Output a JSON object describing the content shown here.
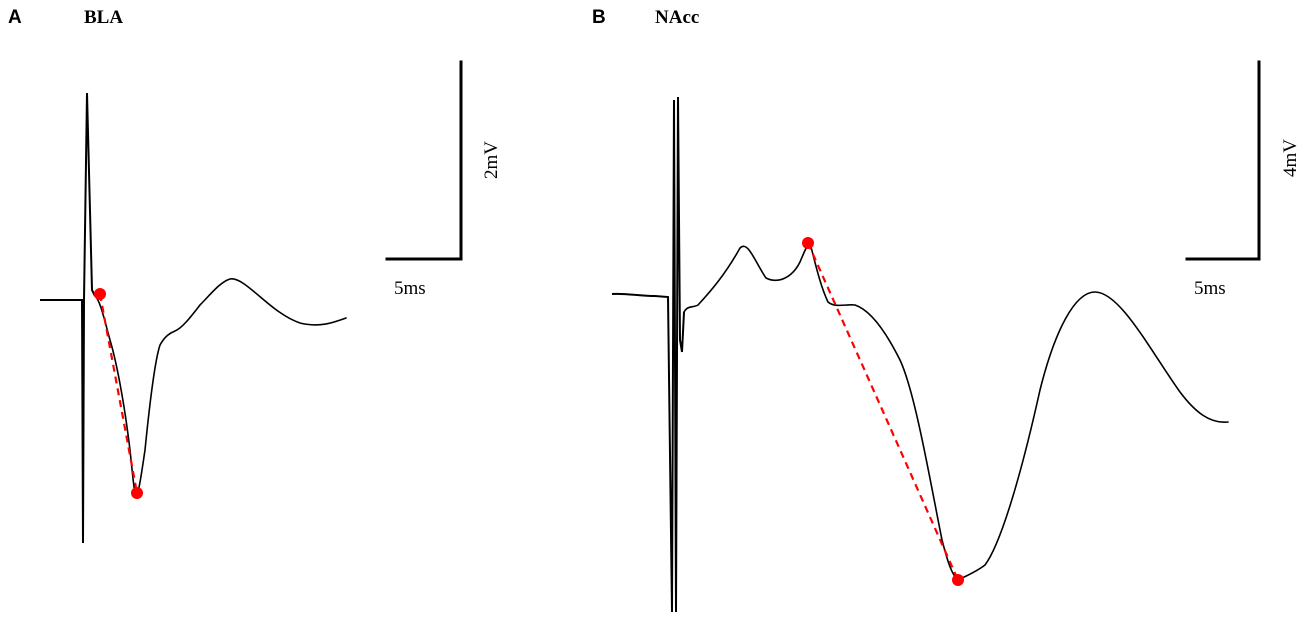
{
  "colors": {
    "trace": "#000000",
    "slope_marker": "#ff0000",
    "background": "#ffffff"
  },
  "chart_data": [
    {
      "type": "line",
      "panel": "A",
      "title": "BLA",
      "scale_bar": {
        "time": "5ms",
        "voltage": "2mV"
      },
      "waveform": {
        "baseline_mv": 0.0,
        "stimulus_artifact": {
          "up_mv": 3.2,
          "down_mv": -3.9
        },
        "fepsp_trough_mv": -3.0,
        "late_peak_mv": 0.3,
        "end_mv": -0.2
      },
      "slope_markers": [
        {
          "label": "onset",
          "time_ms": 1.9,
          "value_mv": 0.0
        },
        {
          "label": "trough",
          "time_ms": 5.7,
          "value_mv": -3.0
        }
      ]
    },
    {
      "type": "line",
      "panel": "B",
      "title": "NAcc",
      "scale_bar": {
        "time": "5ms",
        "voltage": "4mV"
      },
      "waveform": {
        "baseline_mv": 0.0,
        "stimulus_artifact": {
          "up_mv": 3.9,
          "down_mv": -6.0
        },
        "early_peaks_mv": [
          0.9,
          1.0
        ],
        "fepsp_trough_mv": -5.2,
        "late_peak_mv": 0.1,
        "end_mv": -2.4
      },
      "slope_markers": [
        {
          "label": "onset",
          "time_ms": 7.2,
          "value_mv": 1.0
        },
        {
          "label": "trough",
          "time_ms": 17.5,
          "value_mv": -5.2
        }
      ]
    }
  ]
}
